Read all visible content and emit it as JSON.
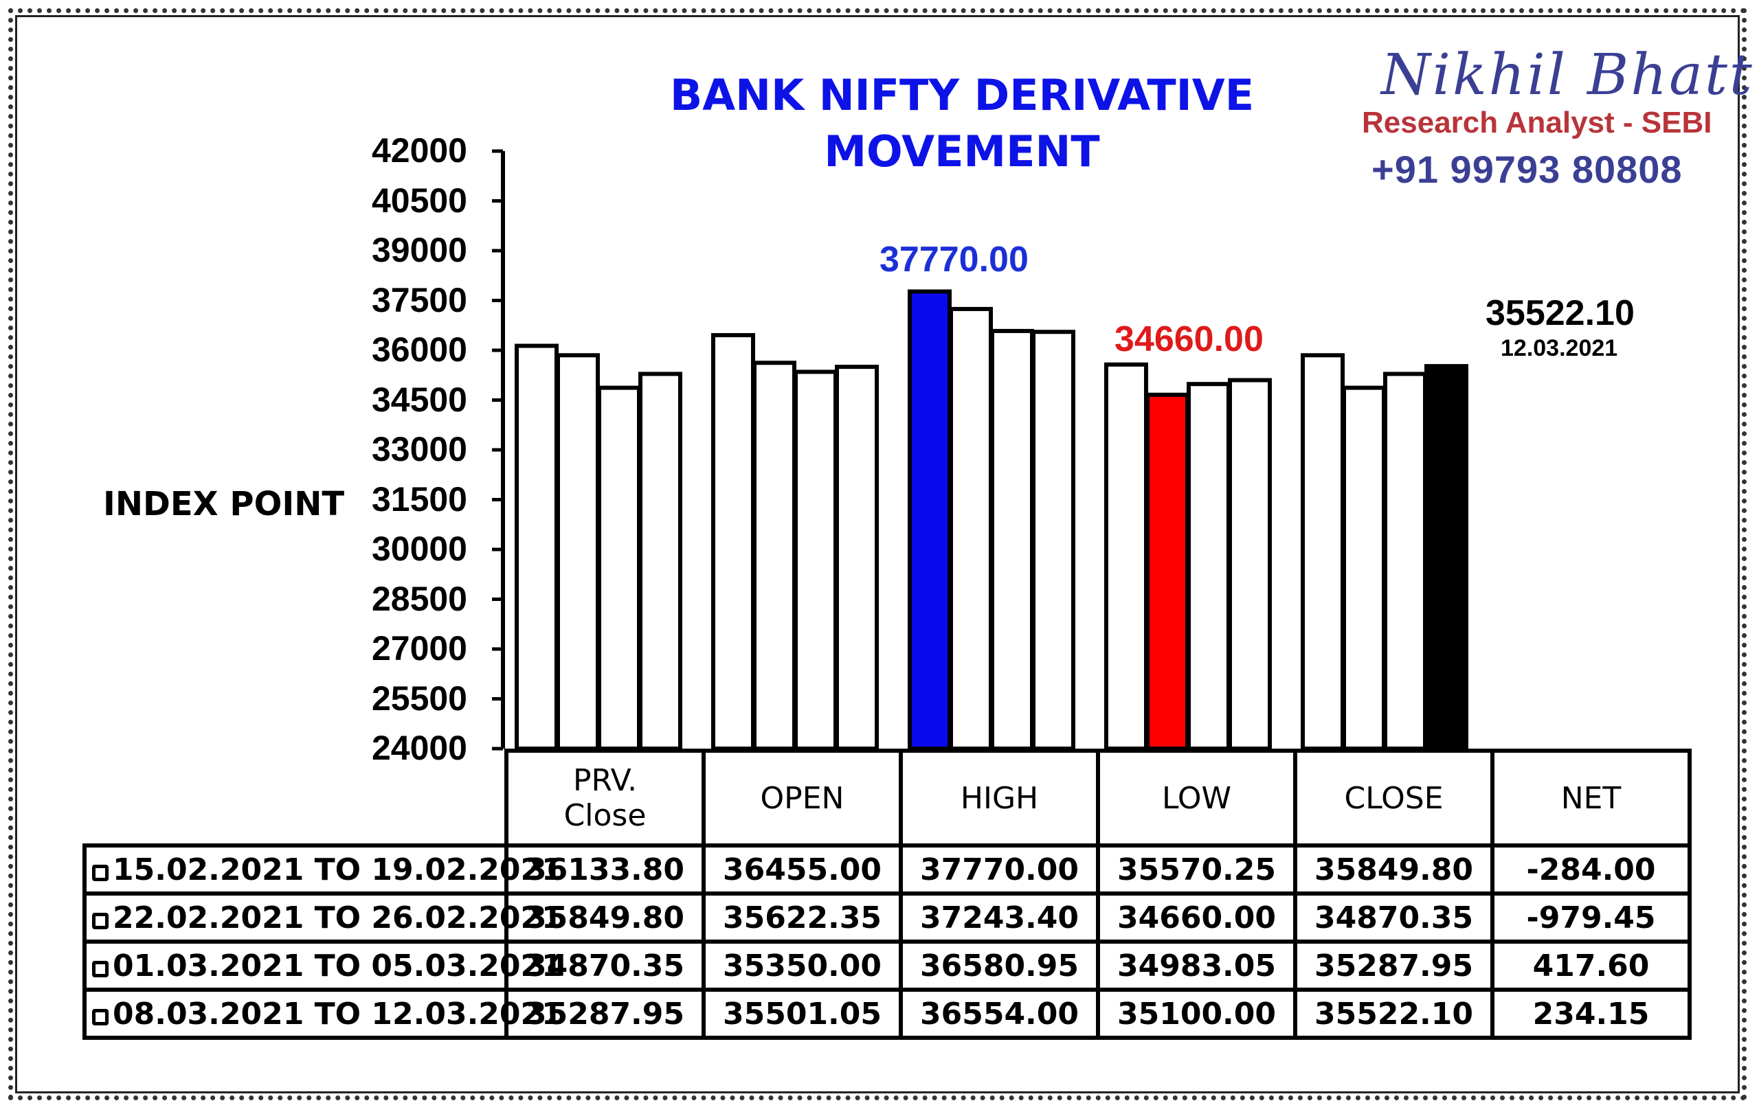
{
  "header": {
    "title_line1": "BANK NIFTY DERIVATIVE",
    "title_line2": "MOVEMENT",
    "brand_name": "Nikhil Bhatt",
    "brand_role": "Research Analyst - SEBI",
    "brand_phone": "+91 99793 80808"
  },
  "chart_data": {
    "type": "bar",
    "title": "BANK NIFTY DERIVATIVE MOVEMENT",
    "ylabel": "INDEX POINT",
    "ylim": [
      24000,
      42000
    ],
    "yticks": [
      "42000",
      "40500",
      "39000",
      "37500",
      "36000",
      "34500",
      "33000",
      "31500",
      "30000",
      "28500",
      "27000",
      "25500",
      "24000"
    ],
    "categories": [
      "PRV. Close",
      "OPEN",
      "HIGH",
      "LOW",
      "CLOSE"
    ],
    "series": [
      {
        "name": "15.02.2021 TO 19.02.2021",
        "values": [
          36133.8,
          36455.0,
          37770.0,
          35570.25,
          35849.8
        ]
      },
      {
        "name": "22.02.2021 TO 26.02.2021",
        "values": [
          35849.8,
          35622.35,
          37243.4,
          34660.0,
          34870.35
        ]
      },
      {
        "name": "01.03.2021 TO 05.03.2021",
        "values": [
          34870.35,
          35350.0,
          36580.95,
          34983.05,
          35287.95
        ]
      },
      {
        "name": "08.03.2021 TO 12.03.2021",
        "values": [
          35287.95,
          35501.05,
          36554.0,
          35100.0,
          35522.1
        ]
      }
    ],
    "highlights": {
      "high": "#0a0af0",
      "low": "#ff0000",
      "close": "#000000",
      "default": "#ffffff"
    },
    "annotations": {
      "high_value": "37770.00",
      "low_value": "34660.00",
      "close_value": "35522.10",
      "close_date": "12.03.2021"
    }
  },
  "table": {
    "headers": [
      "PRV. Close",
      "OPEN",
      "HIGH",
      "LOW",
      "CLOSE",
      "NET"
    ],
    "rows": [
      {
        "period": "15.02.2021 TO 19.02.2021",
        "cells": [
          "36133.80",
          "36455.00",
          "37770.00",
          "35570.25",
          "35849.80",
          "-284.00"
        ]
      },
      {
        "period": "22.02.2021 TO 26.02.2021",
        "cells": [
          "35849.80",
          "35622.35",
          "37243.40",
          "34660.00",
          "34870.35",
          "-979.45"
        ]
      },
      {
        "period": "01.03.2021 TO 05.03.2021",
        "cells": [
          "34870.35",
          "35350.00",
          "36580.95",
          "34983.05",
          "35287.95",
          "417.60"
        ]
      },
      {
        "period": "08.03.2021 TO 12.03.2021",
        "cells": [
          "35287.95",
          "35501.05",
          "36554.00",
          "35100.00",
          "35522.10",
          "234.15"
        ]
      }
    ]
  }
}
